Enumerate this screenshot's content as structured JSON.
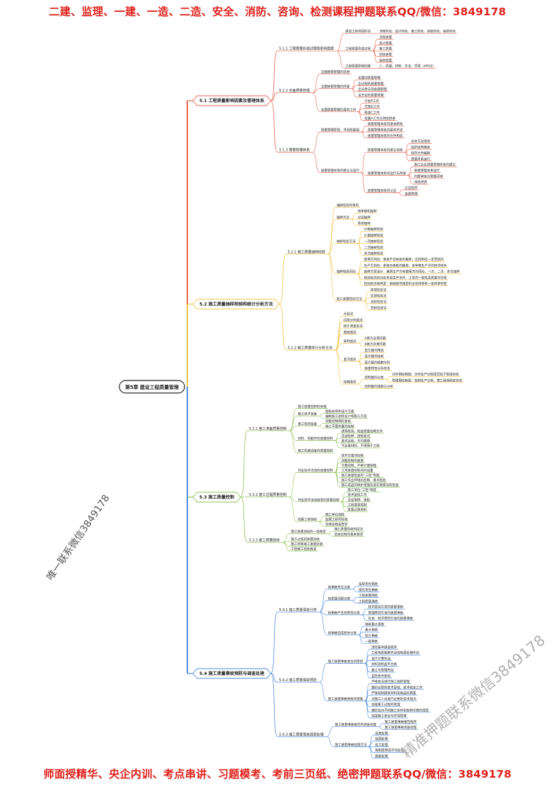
{
  "banner_top": "二建、监理、一建、一造、二造、安全、消防、咨询、检测课程押题联系QQ/微信：3849178",
  "banner_bottom": "师面授精华、央企内训、考点串讲、习题模考、考前三页纸、绝密押题联系QQ/微信：3849178",
  "watermark_left": "唯一联系微信3849178",
  "watermark_right": "精准押题联系微信3849178",
  "colors": {
    "banner": "#e0201a",
    "branch_1": "#e8604c",
    "branch_2": "#f0c040",
    "branch_3": "#8cc152",
    "branch_4": "#4a89dc"
  },
  "mindmap": {
    "label": "第5章 建设工程质量管理",
    "children": [
      {
        "label": "5.1 工程质量影响因素及管理体系",
        "children": [
          {
            "label": "5.1.1 工程质量形成过程和影响因素",
            "children": [
              {
                "label": "建设工程项目阶段",
                "children": [
                  {
                    "label": "决策阶段、设计阶段、施工阶段、验收阶段、保修阶段"
                  }
                ]
              },
              {
                "label": "工程质量形成过程",
                "children": [
                  {
                    "label": "决策质量"
                  },
                  {
                    "label": "设计质量"
                  },
                  {
                    "label": "施工质量"
                  },
                  {
                    "label": "验收质量"
                  },
                  {
                    "label": "保修质量"
                  }
                ]
              },
              {
                "label": "工程质量影响因素",
                "children": [
                  {
                    "label": "人、机械、材料、方法、环境（4M1E）"
                  }
                ]
              }
            ]
          },
          {
            "label": "5.1.2 全面质量管理",
            "children": [
              {
                "label": "全面质量管理的思想"
              },
              {
                "label": "全面质量管理的内容",
                "children": [
                  {
                    "label": "全面的质量管理"
                  },
                  {
                    "label": "全过程的质量管理"
                  },
                  {
                    "label": "全员参与的质量管理"
                  },
                  {
                    "label": "全方位的质量管理"
                  }
                ]
              },
              {
                "label": "全面质量管理的基本工作",
                "children": [
                  {
                    "label": "计划P工作"
                  },
                  {
                    "label": "实施D工作"
                  },
                  {
                    "label": "检查C工作"
                  },
                  {
                    "label": "处置A工作与持续改进"
                  }
                ]
              }
            ]
          },
          {
            "label": "5.1.3 质量管理体系",
            "children": [
              {
                "label": "质量管理原则、术语和基础",
                "children": [
                  {
                    "label": "质量管理体系的基本原则"
                  },
                  {
                    "label": "质量管理体系的基本术语"
                  },
                  {
                    "label": "质量管理体系的文件构成"
                  }
                ]
              },
              {
                "label": "质量管理体系的建立与运行",
                "children": [
                  {
                    "label": "质量管理体系的建立流程",
                    "children": [
                      {
                        "label": "总体方案策划"
                      },
                      {
                        "label": "组织结构确定"
                      },
                      {
                        "label": "程序文件编制"
                      },
                      {
                        "label": "质量体系运行"
                      }
                    ]
                  },
                  {
                    "label": "质量管理体系的运行与改进",
                    "children": [
                      {
                        "label": "施工企业质量管理体系的建立"
                      },
                      {
                        "label": "质量管理体系运行"
                      },
                      {
                        "label": "内部审核与管理评审"
                      },
                      {
                        "label": "持续改进"
                      }
                    ]
                  },
                  {
                    "label": "质量管理体系的认证",
                    "children": [
                      {
                        "label": "认证程序"
                      },
                      {
                        "label": "监督管理"
                      }
                    ]
                  }
                ]
              }
            ]
          }
        ]
      },
      {
        "label": "5.2 施工质量抽样检验和统计分析方法",
        "children": [
          {
            "label": "5.2.1 施工质量抽样检验",
            "children": [
              {
                "label": "抽样检验的目的"
              },
              {
                "label": "抽样方法",
                "children": [
                  {
                    "label": "简单随机抽样"
                  },
                  {
                    "label": "分层抽样"
                  },
                  {
                    "label": "系统抽样"
                  }
                ]
              },
              {
                "label": "抽样检验方法",
                "children": [
                  {
                    "label": "计数抽样检验"
                  },
                  {
                    "label": "计量抽样检验"
                  },
                  {
                    "label": "一次抽样检验"
                  },
                  {
                    "label": "二次抽样检验"
                  },
                  {
                    "label": "多次抽样检验"
                  }
                ]
              },
              {
                "label": "抽样检验风险",
                "children": [
                  {
                    "label": "使用方风险：接收不合格批的概率，应控制在一定范围内"
                  },
                  {
                    "label": "生产方风险：拒收合格批的概率，会导致生产方的经济损失"
                  },
                  {
                    "label": "抽样方案设计：兼顾生产方和使用方的风险，一次、二次、多次抽样"
                  },
                  {
                    "label": "检验批的划分应考虑生产条件、工艺的一致性及质量均匀性"
                  },
                  {
                    "label": "检验批合格判定：根据规范规定的主控项目和一般项目判定"
                  }
                ]
              },
              {
                "label": "施工质量检验方法",
                "children": [
                  {
                    "label": "目测检验法"
                  },
                  {
                    "label": "实测检验法"
                  },
                  {
                    "label": "试验检验法"
                  },
                  {
                    "label": "无损检测法"
                  }
                ]
              }
            ]
          },
          {
            "label": "5.2.2 施工质量统计分析方法",
            "children": [
              {
                "label": "分层法"
              },
              {
                "label": "因果分析图法"
              },
              {
                "label": "统计调查表法"
              },
              {
                "label": "相关图法"
              },
              {
                "label": "排列图法",
                "children": [
                  {
                    "label": "A类为主要问题"
                  },
                  {
                    "label": "B类为次要问题"
                  }
                ]
              },
              {
                "label": "直方图法",
                "children": [
                  {
                    "label": "直方图的用途"
                  },
                  {
                    "label": "直方图的绘制"
                  },
                  {
                    "label": "直方图的观察分析"
                  },
                  {
                    "label": "质量特性分布状态"
                  }
                ]
              },
              {
                "label": "控制图法",
                "children": [
                  {
                    "label": "控制图的分类",
                    "children": [
                      {
                        "label": "分析用控制图：分析生产过程是否处于稳定状态"
                      },
                      {
                        "label": "管理用控制图：控制生产过程，使之保持稳定状态"
                      }
                    ]
                  },
                  {
                    "label": "控制图的观察与分析"
                  }
                ]
              }
            ]
          }
        ]
      },
      {
        "label": "5.3 施工质量控制",
        "children": [
          {
            "label": "5.3.1 施工准备质量控制",
            "children": [
              {
                "label": "施工质量控制的依据"
              },
              {
                "label": "施工技术准备",
                "children": [
                  {
                    "label": "图纸会审和设计交底"
                  },
                  {
                    "label": "编制施工组织设计和施工方案"
                  }
                ]
              },
              {
                "label": "施工现场准备",
                "children": [
                  {
                    "label": "测量控制网的复核"
                  },
                  {
                    "label": "施工平面布置的控制"
                  }
                ]
              },
              {
                "label": "材料、构配件的质量控制",
                "children": [
                  {
                    "label": "进场检验，检查质量证明文件"
                  },
                  {
                    "label": "见证取样，送检复试"
                  },
                  {
                    "label": "复试合格，方可使用"
                  },
                  {
                    "label": "不合格材料，不得用于工程"
                  }
                ]
              },
              {
                "label": "施工机械设备的质量控制"
              }
            ]
          },
          {
            "label": "5.3.2 施工过程质量控制",
            "children": [
              {
                "label": "作业技术活动的质量控制",
                "children": [
                  {
                    "label": "技术交底的控制"
                  },
                  {
                    "label": "测量控制的质量"
                  },
                  {
                    "label": "计量控制，严格计量管理"
                  },
                  {
                    "label": "工序质量控制点的设置"
                  },
                  {
                    "label": "施工质量检查的“三检”制度"
                  },
                  {
                    "label": "施工作业环境的控制，重点检验"
                  },
                  {
                    "label": "施工成品的保护措施及其实施情况的检查"
                  }
                ]
              },
              {
                "label": "作业技术活动结果的质量控制",
                "children": [
                  {
                    "label": "施工单位“三检”制度"
                  },
                  {
                    "label": "技术复核工作"
                  },
                  {
                    "label": "见证取样、送检"
                  },
                  {
                    "label": "工程变更控制"
                  },
                  {
                    "label": "质量记录资料"
                  }
                ]
              },
              {
                "label": "隐蔽工程验收",
                "children": [
                  {
                    "label": "施工单位自检"
                  },
                  {
                    "label": "监理工程师验收"
                  },
                  {
                    "label": "验收合格后签字"
                  }
                ]
              }
            ]
          },
          {
            "label": "5.3.3 施工质量验收",
            "children": [
              {
                "label": "施工质量验收的一般规定",
                "children": [
                  {
                    "label": "施工质量验收的层次"
                  },
                  {
                    "label": "验收合格的基本要求"
                  }
                ]
              },
              {
                "label": "施工过程的质量验收"
              },
              {
                "label": "施工项目竣工质量验收"
              },
              {
                "label": "工程竣工验收备案"
              }
            ]
          }
        ]
      },
      {
        "label": "5.4 施工质量事故预防与调查处理",
        "children": [
          {
            "label": "5.4.1 施工质量事故分类",
            "children": [
              {
                "label": "按事故责任分类",
                "children": [
                  {
                    "label": "指导责任事故"
                  },
                  {
                    "label": "操作责任事故"
                  }
                ]
              },
              {
                "label": "按质量问题分类",
                "children": [
                  {
                    "label": "工程质量缺陷"
                  },
                  {
                    "label": "工程质量通病"
                  }
                ]
              },
              {
                "label": "按事故产生的原因分类",
                "children": [
                  {
                    "label": "技术原因引发的质量事故"
                  },
                  {
                    "label": "管理原因引发的质量事故"
                  },
                  {
                    "label": "社会、经济原因引发的质量事故"
                  }
                ]
              },
              {
                "label": "按事故造成损失分类",
                "children": [
                  {
                    "label": "特别重大事故"
                  },
                  {
                    "label": "重大事故"
                  },
                  {
                    "label": "较大事故"
                  },
                  {
                    "label": "一般事故"
                  }
                ]
              }
            ]
          },
          {
            "label": "5.4.2 施工质量事故预防",
            "children": [
              {
                "label": "施工质量事故发生的原因",
                "children": [
                  {
                    "label": "违背基本建设程序"
                  },
                  {
                    "label": "工程地质勘察失误或地基处理失误"
                  },
                  {
                    "label": "设计计算失误"
                  },
                  {
                    "label": "材料及制品不合格"
                  },
                  {
                    "label": "施工与管理失控"
                  },
                  {
                    "label": "自然条件影响"
                  }
                ]
              },
              {
                "label": "施工质量事故预防的措施",
                "children": [
                  {
                    "label": "严格依法进行施工组织管理"
                  },
                  {
                    "label": "做好必要的技术复核、技术核定工作"
                  },
                  {
                    "label": "严格控制建筑材料及制品的质量"
                  },
                  {
                    "label": "对施工人员进行必要的技术培训"
                  },
                  {
                    "label": "加强施工过程的管理"
                  },
                  {
                    "label": "做好应对不利施工条件和各种灾害的预案"
                  },
                  {
                    "label": "加强施工安全与环境管理"
                  }
                ]
              }
            ]
          },
          {
            "label": "5.4.3 施工质量事故调查处理",
            "children": [
              {
                "label": "施工质量事故报告和调查处理",
                "children": [
                  {
                    "label": "施工质量事故报告程序"
                  },
                  {
                    "label": "施工质量事故调查处理"
                  }
                ]
              },
              {
                "label": "施工质量事故处理方法",
                "children": [
                  {
                    "label": "返修处理"
                  },
                  {
                    "label": "加固处理"
                  },
                  {
                    "label": "返工处理"
                  },
                  {
                    "label": "限制使用或不作处理"
                  },
                  {
                    "label": "报废处理"
                  }
                ]
              }
            ]
          }
        ]
      }
    ]
  }
}
